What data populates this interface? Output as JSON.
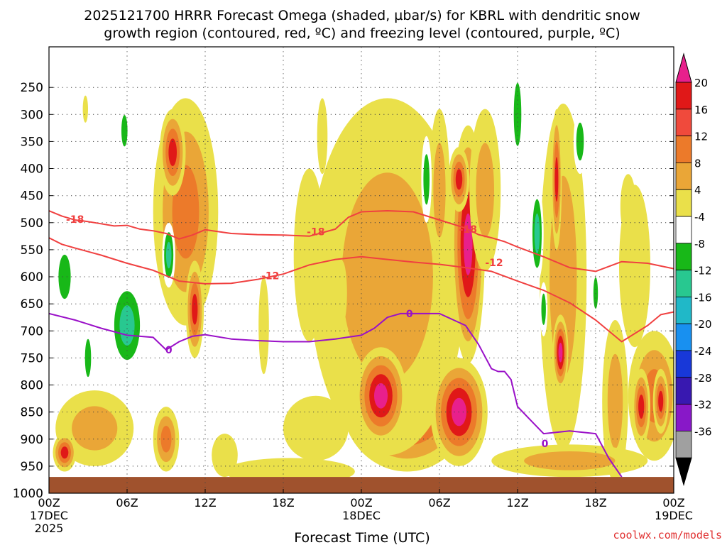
{
  "chart_data": {
    "type": "heatmap",
    "title_line1": "2025121700 HRRR Forecast Omega (shaded, µbar/s) for KBRL with dendritic snow",
    "title_line2": "growth region (contoured, red, ºC) and freezing level (contoured, purple, ºC)",
    "xlabel": "Forecast Time (UTC)",
    "ylabel": "",
    "credit": "coolwx.com/models",
    "x_range_hours": [
      0,
      48
    ],
    "y_levels_hpa": [
      250,
      300,
      350,
      400,
      450,
      500,
      550,
      600,
      650,
      700,
      750,
      800,
      850,
      900,
      950,
      1000
    ],
    "y_range_hpa": [
      175,
      1000
    ],
    "x_ticks": [
      {
        "hour": 0,
        "line1": "00Z",
        "line2": "17DEC",
        "line3": "2025"
      },
      {
        "hour": 6,
        "line1": "06Z",
        "line2": "",
        "line3": ""
      },
      {
        "hour": 12,
        "line1": "12Z",
        "line2": "",
        "line3": ""
      },
      {
        "hour": 18,
        "line1": "18Z",
        "line2": "",
        "line3": ""
      },
      {
        "hour": 24,
        "line1": "00Z",
        "line2": "18DEC",
        "line3": ""
      },
      {
        "hour": 30,
        "line1": "06Z",
        "line2": "",
        "line3": ""
      },
      {
        "hour": 36,
        "line1": "12Z",
        "line2": "",
        "line3": ""
      },
      {
        "hour": 42,
        "line1": "18Z",
        "line2": "",
        "line3": ""
      },
      {
        "hour": 48,
        "line1": "00Z",
        "line2": "19DEC",
        "line3": ""
      }
    ],
    "colorbar": {
      "labels": [
        "20",
        "16",
        "12",
        "8",
        "4",
        "-4",
        "-8",
        "-12",
        "-16",
        "-20",
        "-24",
        "-28",
        "-32",
        "-36"
      ],
      "top_arrow_color": "#e8208c",
      "bottom_arrow_color": "#000000",
      "colors": [
        "#e01818",
        "#f04a3c",
        "#ec7a2a",
        "#eaa637",
        "#eae04a",
        "#ffffff",
        "#18b818",
        "#28c890",
        "#20b8c8",
        "#1890f0",
        "#1838d8",
        "#3818b0",
        "#8818c8",
        "#a0a0a0"
      ]
    },
    "ground_level_hpa": 970,
    "ground_color": "#a0522d",
    "series": [
      {
        "name": "DGZ -18C isotherm",
        "color": "#f04040",
        "x": [
          0,
          1,
          2,
          3,
          4,
          5,
          6,
          7,
          8,
          9,
          10,
          11,
          12,
          14,
          16,
          18,
          20,
          22,
          23,
          24,
          26,
          28,
          30,
          32,
          33,
          34,
          35,
          36,
          38,
          40,
          42,
          44,
          46,
          48
        ],
        "p": [
          478,
          488,
          495,
          498,
          502,
          506,
          505,
          512,
          515,
          520,
          530,
          523,
          513,
          520,
          522,
          523,
          525,
          512,
          490,
          480,
          478,
          480,
          495,
          510,
          522,
          528,
          535,
          545,
          563,
          583,
          590,
          572,
          575,
          585
        ],
        "labels": [
          {
            "x": 2,
            "p": 494,
            "text": "-18"
          },
          {
            "x": 20.5,
            "p": 517,
            "text": "-18"
          },
          {
            "x": 32.2,
            "p": 512,
            "text": "-18"
          }
        ]
      },
      {
        "name": "DGZ -12C isotherm",
        "color": "#f04040",
        "x": [
          0,
          1,
          2,
          4,
          6,
          8,
          10,
          12,
          14,
          16,
          18,
          20,
          22,
          24,
          26,
          28,
          30,
          32,
          34,
          36,
          38,
          40,
          42,
          44,
          46,
          47,
          48
        ],
        "p": [
          528,
          540,
          547,
          560,
          575,
          588,
          608,
          613,
          612,
          605,
          595,
          578,
          568,
          563,
          568,
          573,
          577,
          583,
          590,
          608,
          625,
          648,
          680,
          720,
          690,
          670,
          665
        ],
        "labels": [
          {
            "x": 17,
            "p": 598,
            "text": "-12"
          },
          {
            "x": 34.2,
            "p": 574,
            "text": "-12"
          }
        ]
      },
      {
        "name": "Freezing level 0C",
        "color": "#9a10c8",
        "x": [
          0,
          2,
          4,
          6,
          8,
          9,
          10,
          11,
          12,
          14,
          16,
          18,
          20,
          22,
          24,
          25,
          26,
          27,
          28,
          30,
          32,
          33,
          34,
          34.5,
          35,
          35.5,
          36,
          37,
          38,
          40,
          42,
          43,
          44
        ],
        "p": [
          668,
          680,
          695,
          708,
          712,
          735,
          720,
          710,
          707,
          715,
          718,
          720,
          720,
          715,
          708,
          695,
          675,
          668,
          668,
          668,
          690,
          725,
          770,
          775,
          775,
          790,
          840,
          865,
          890,
          885,
          890,
          935,
          970
        ],
        "labels": [
          {
            "x": 9.2,
            "p": 735,
            "text": "0"
          },
          {
            "x": 27.7,
            "p": 668,
            "text": "0"
          },
          {
            "x": 38.1,
            "p": 908,
            "text": "0"
          }
        ]
      }
    ],
    "omega_blobs": [
      {
        "cx": 10.5,
        "cp": 480,
        "rx": 2.5,
        "rp": 210,
        "v": 12
      },
      {
        "cx": 9.5,
        "cp": 370,
        "rx": 1.0,
        "rp": 80,
        "v": 16
      },
      {
        "cx": 9.2,
        "cp": 560,
        "rx": 0.5,
        "rp": 60,
        "v": -12
      },
      {
        "cx": 11.2,
        "cp": 660,
        "rx": 0.7,
        "rp": 90,
        "v": 16
      },
      {
        "cx": 6.0,
        "cp": 690,
        "rx": 1.4,
        "rp": 90,
        "v": -12
      },
      {
        "cx": 1.2,
        "cp": 600,
        "rx": 0.8,
        "rp": 70,
        "v": -8
      },
      {
        "cx": 3.0,
        "cp": 750,
        "rx": 0.4,
        "rp": 60,
        "v": -8
      },
      {
        "cx": 5.8,
        "cp": 330,
        "rx": 0.4,
        "rp": 50,
        "v": -8
      },
      {
        "cx": 3.5,
        "cp": 880,
        "rx": 3.0,
        "rp": 70,
        "v": 8
      },
      {
        "cx": 1.2,
        "cp": 925,
        "rx": 0.9,
        "rp": 35,
        "v": 16
      },
      {
        "cx": 9.0,
        "cp": 900,
        "rx": 1.0,
        "rp": 60,
        "v": 12
      },
      {
        "cx": 2.8,
        "cp": 290,
        "rx": 0.2,
        "rp": 25,
        "v": 4
      },
      {
        "cx": 27.5,
        "cp": 830,
        "rx": 5.0,
        "rp": 130,
        "v": 20
      },
      {
        "cx": 26.0,
        "cp": 600,
        "rx": 6.0,
        "rp": 330,
        "v": 8
      },
      {
        "cx": 25.5,
        "cp": 820,
        "rx": 2.0,
        "rp": 90,
        "v": 20
      },
      {
        "cx": 31.5,
        "cp": 850,
        "rx": 2.2,
        "rp": 100,
        "v": 20
      },
      {
        "cx": 32.2,
        "cp": 540,
        "rx": 1.3,
        "rp": 220,
        "v": 20
      },
      {
        "cx": 31.5,
        "cp": 420,
        "rx": 0.8,
        "rp": 60,
        "v": 16
      },
      {
        "cx": 33.5,
        "cp": 440,
        "rx": 1.2,
        "rp": 150,
        "v": 8
      },
      {
        "cx": 30.0,
        "cp": 440,
        "rx": 0.8,
        "rp": 150,
        "v": 8
      },
      {
        "cx": 36.0,
        "cp": 300,
        "rx": 0.5,
        "rp": 100,
        "v": -8
      },
      {
        "cx": 29.0,
        "cp": 420,
        "rx": 0.4,
        "rp": 80,
        "v": -8
      },
      {
        "cx": 39.5,
        "cp": 600,
        "rx": 1.8,
        "rp": 320,
        "v": 8
      },
      {
        "cx": 39.0,
        "cp": 420,
        "rx": 0.4,
        "rp": 130,
        "v": 16
      },
      {
        "cx": 39.3,
        "cp": 740,
        "rx": 0.6,
        "rp": 70,
        "v": 20
      },
      {
        "cx": 37.5,
        "cp": 520,
        "rx": 0.5,
        "rp": 90,
        "v": -12
      },
      {
        "cx": 40.8,
        "cp": 350,
        "rx": 0.5,
        "rp": 60,
        "v": -8
      },
      {
        "cx": 46.5,
        "cp": 820,
        "rx": 2.0,
        "rp": 120,
        "v": 12
      },
      {
        "cx": 45.5,
        "cp": 840,
        "rx": 0.7,
        "rp": 70,
        "v": 16
      },
      {
        "cx": 47.0,
        "cp": 830,
        "rx": 0.6,
        "rp": 60,
        "v": 16
      },
      {
        "cx": 45.0,
        "cp": 580,
        "rx": 1.2,
        "rp": 150,
        "v": 4
      },
      {
        "cx": 16.5,
        "cp": 690,
        "rx": 0.4,
        "rp": 90,
        "v": 4
      },
      {
        "cx": 20.0,
        "cp": 560,
        "rx": 1.2,
        "rp": 160,
        "v": 4
      },
      {
        "cx": 21.0,
        "cp": 340,
        "rx": 0.4,
        "rp": 70,
        "v": 4
      },
      {
        "cx": 20.5,
        "cp": 880,
        "rx": 2.5,
        "rp": 60,
        "v": 4
      },
      {
        "cx": 13.5,
        "cp": 930,
        "rx": 1.0,
        "rp": 40,
        "v": 4
      },
      {
        "cx": 18.5,
        "cp": 960,
        "rx": 5.0,
        "rp": 25,
        "v": 4
      },
      {
        "cx": 43.5,
        "cp": 830,
        "rx": 1.0,
        "rp": 150,
        "v": 8
      },
      {
        "cx": 44.5,
        "cp": 470,
        "rx": 0.6,
        "rp": 60,
        "v": 4
      },
      {
        "cx": 40.0,
        "cp": 940,
        "rx": 6.0,
        "rp": 30,
        "v": 8
      },
      {
        "cx": 42.0,
        "cp": 630,
        "rx": 0.3,
        "rp": 50,
        "v": -8
      },
      {
        "cx": 22.5,
        "cp": 630,
        "rx": 0.4,
        "rp": 60,
        "v": 4
      },
      {
        "cx": 38.0,
        "cp": 660,
        "rx": 0.3,
        "rp": 50,
        "v": -8
      }
    ]
  }
}
